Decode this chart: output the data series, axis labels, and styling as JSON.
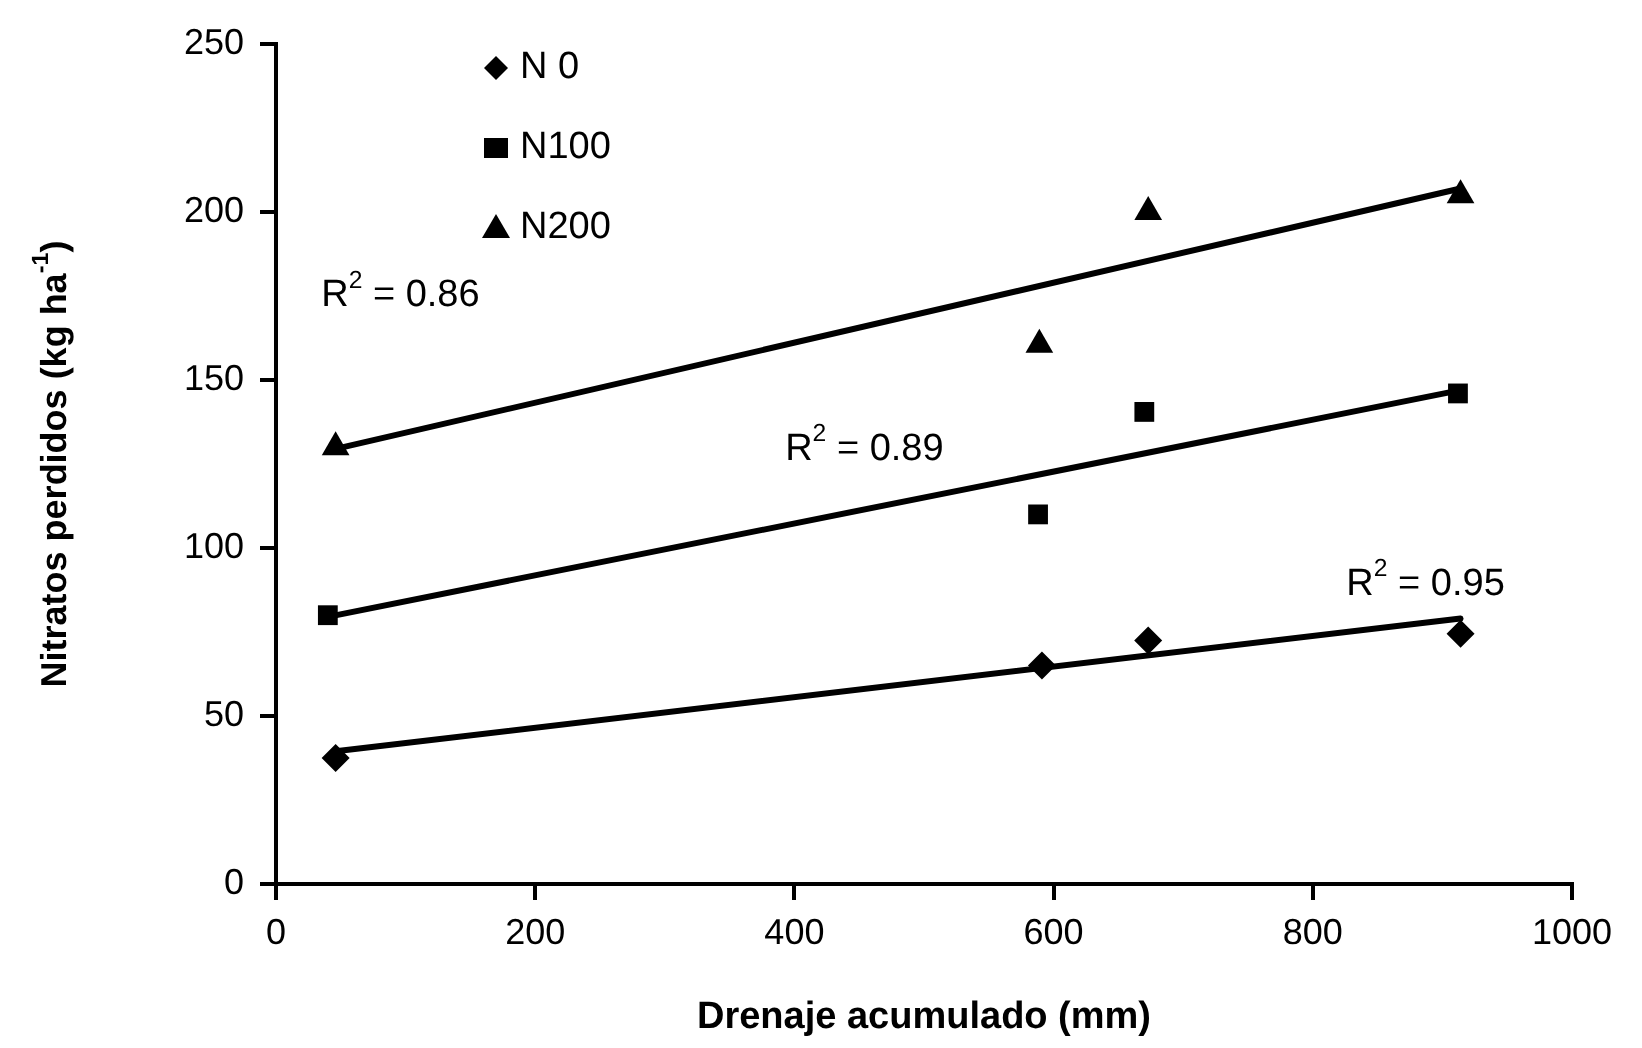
{
  "chart_data": {
    "type": "scatter",
    "xlabel": "Drenaje acumulado (mm)",
    "ylabel": "Nitratos perdidos (kg ha$^{-1}$)",
    "xlim": [
      0,
      1000
    ],
    "xticks": [
      0,
      200,
      400,
      600,
      800,
      1000
    ],
    "ylim": [
      0,
      250
    ],
    "yticks": [
      0,
      50,
      100,
      150,
      200,
      250
    ],
    "grid": false,
    "legend": "top left",
    "series": [
      {
        "name": "N 0",
        "color": "#000000",
        "marker": "diamond",
        "x": [
          46,
          591,
          673,
          914
        ],
        "values": [
          37.5,
          65,
          72.5,
          74.5
        ]
      },
      {
        "name": "N100",
        "color": "#000000",
        "marker": "square",
        "x": [
          40,
          588,
          670,
          912
        ],
        "values": [
          80,
          110,
          140.5,
          146
        ]
      },
      {
        "name": "N200",
        "color": "#000000",
        "marker": "triangle",
        "x": [
          46,
          589,
          673,
          914
        ],
        "values": [
          130,
          160.5,
          200,
          205
        ]
      },
      {
        "type": "line",
        "color": "#000000",
        "marker": "none",
        "x": [
          46,
          914
        ],
        "values": [
          39.5,
          79
        ]
      },
      {
        "type": "line",
        "color": "#000000",
        "marker": "none",
        "x": [
          40,
          914
        ],
        "values": [
          79.5,
          147
        ]
      },
      {
        "type": "line",
        "color": "#000000",
        "marker": "none",
        "x": [
          46,
          914
        ],
        "values": [
          129.5,
          207
        ]
      }
    ],
    "annotations": [
      "R$^{2}$ = 0.86",
      "R$^{2}$ = 0.89",
      "R$^{2}$ = 0.95"
    ]
  }
}
